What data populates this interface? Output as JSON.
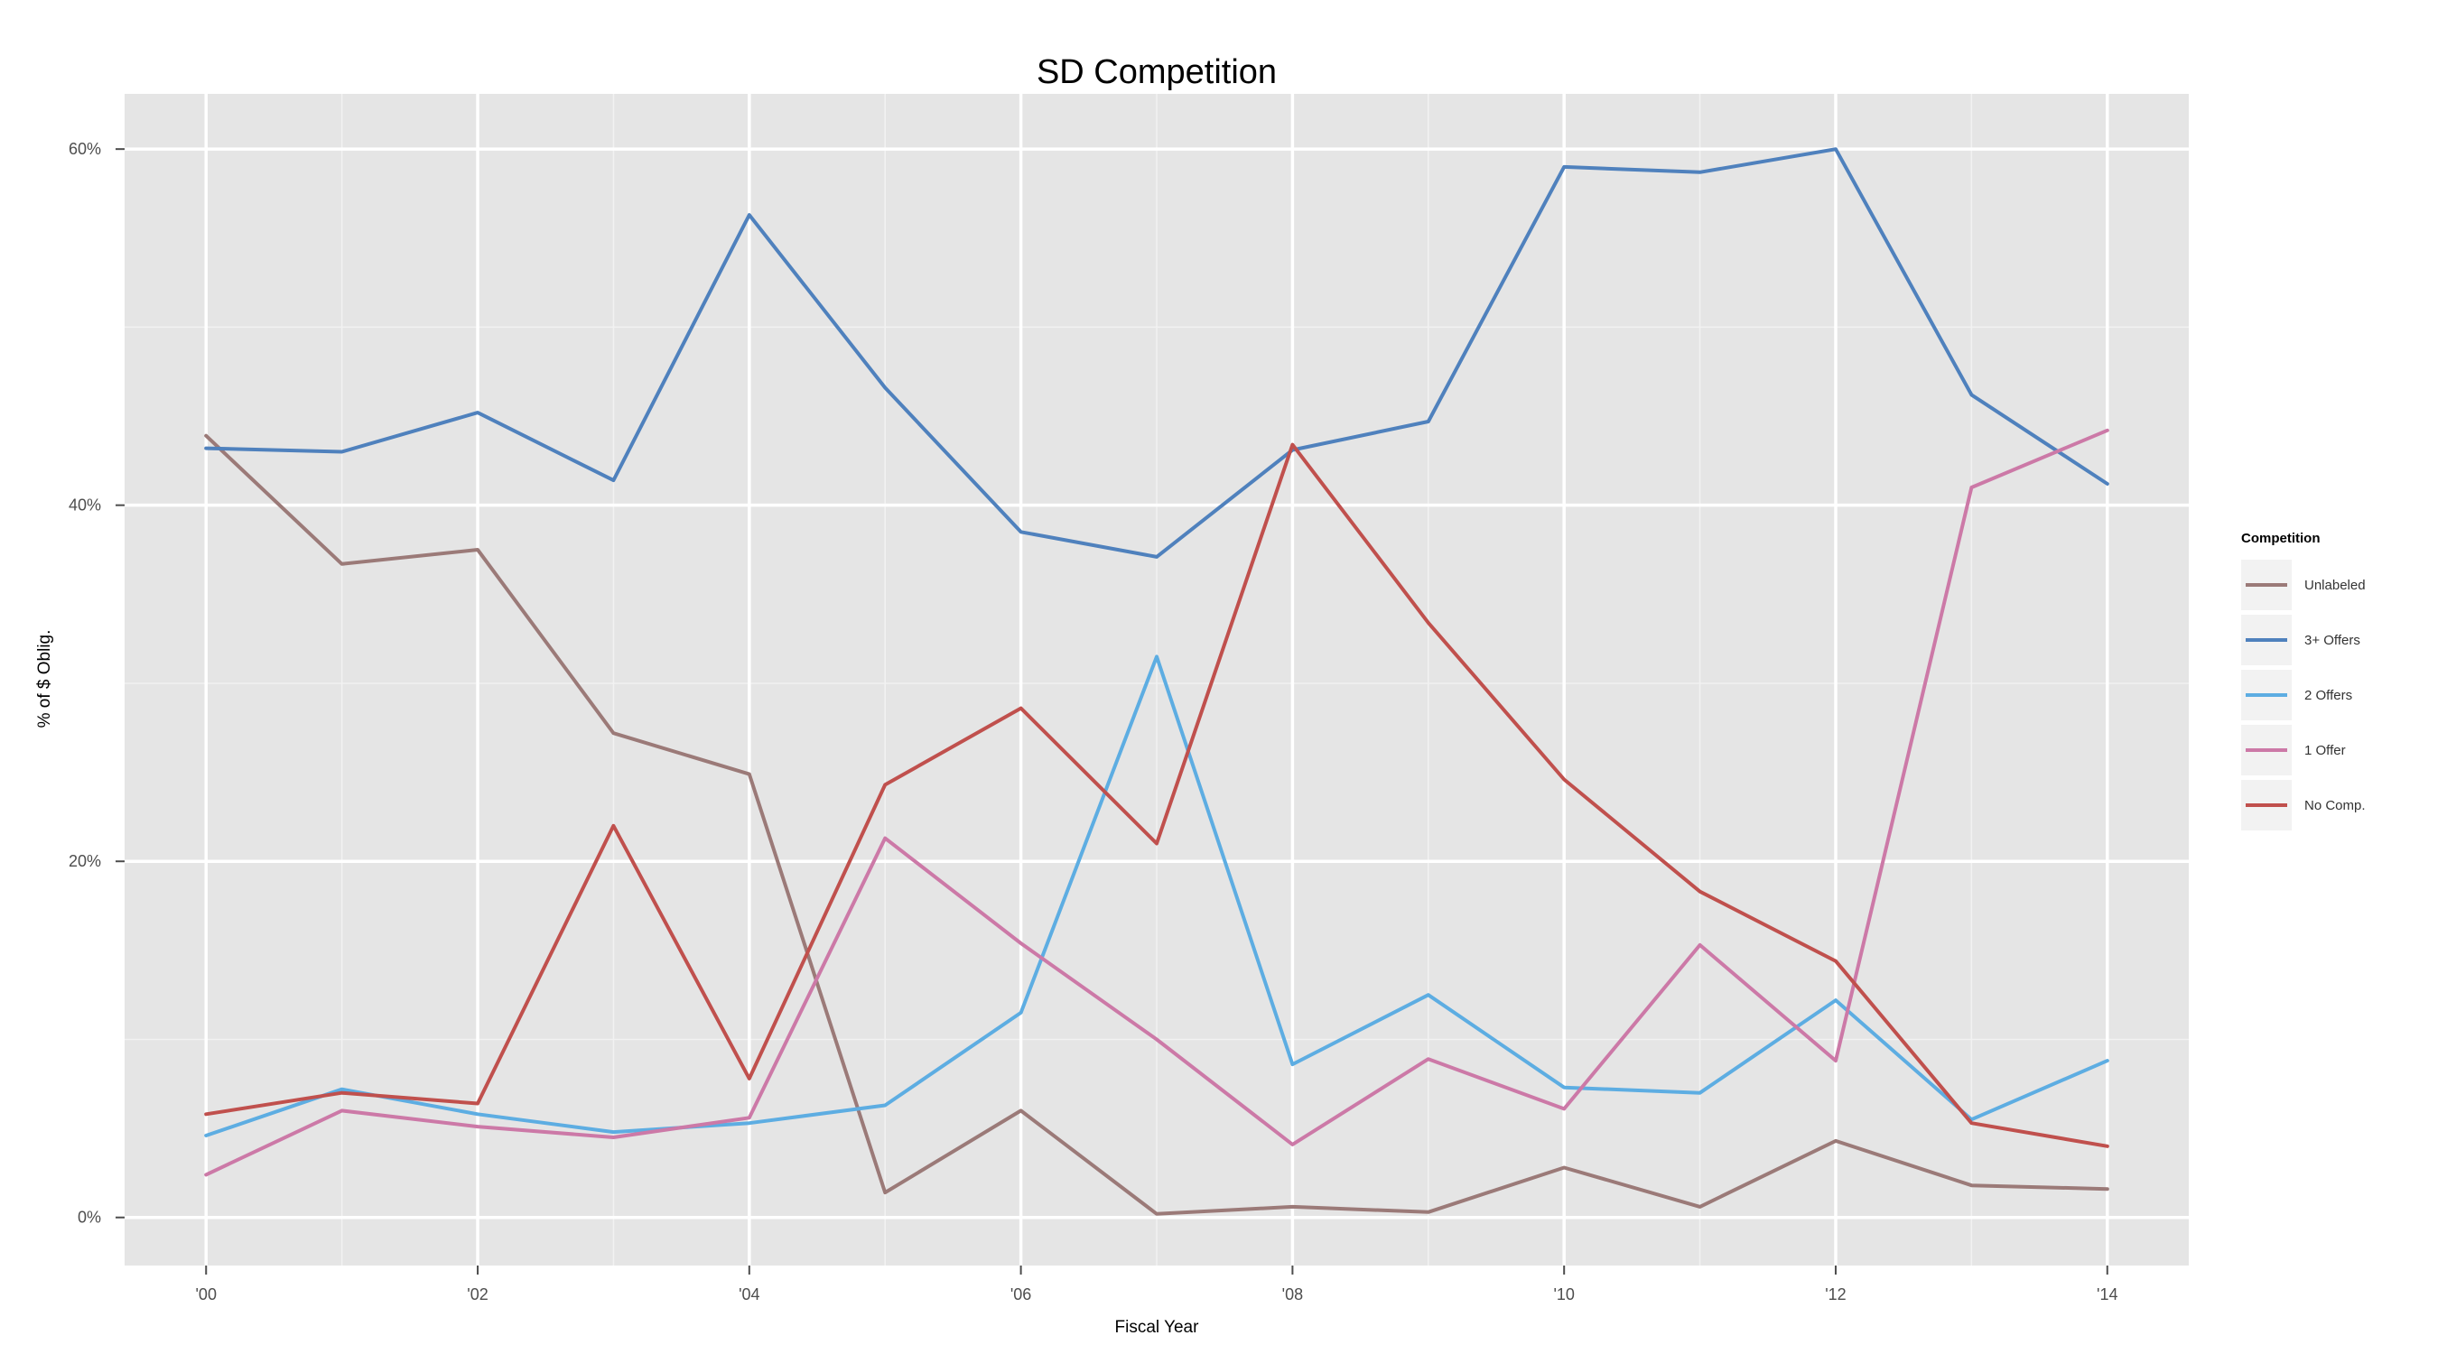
{
  "chart_data": {
    "type": "line",
    "title": "SD Competition",
    "xlabel": "Fiscal Year",
    "ylabel": "% of $ Oblig.",
    "x": [
      2000,
      2001,
      2002,
      2003,
      2004,
      2005,
      2006,
      2007,
      2008,
      2009,
      2010,
      2011,
      2012,
      2013,
      2014
    ],
    "x_ticks": [
      2000,
      2002,
      2004,
      2006,
      2008,
      2010,
      2012,
      2014
    ],
    "x_tick_labels": [
      "'00",
      "'02",
      "'04",
      "'06",
      "'08",
      "'10",
      "'12",
      "'14"
    ],
    "xlim": [
      1999.4,
      2014.6
    ],
    "y_ticks": [
      0,
      20,
      40,
      60
    ],
    "y_tick_labels": [
      "0%",
      "20%",
      "40%",
      "60%"
    ],
    "ylim": [
      -2.7,
      63.1
    ],
    "grid": true,
    "legend_title": "Competition",
    "legend_position": "right",
    "series": [
      {
        "name": "Unlabeled",
        "color": "#9b7a78",
        "values": [
          43.9,
          36.7,
          37.5,
          27.2,
          24.9,
          1.4,
          6.0,
          0.2,
          0.6,
          0.3,
          2.8,
          0.6,
          4.3,
          1.8,
          1.6
        ]
      },
      {
        "name": "3+ Offers",
        "color": "#4f81bd",
        "values": [
          43.2,
          43.0,
          45.2,
          41.4,
          56.3,
          46.6,
          38.5,
          37.1,
          43.1,
          44.7,
          59.0,
          58.7,
          60.0,
          46.2,
          41.2
        ]
      },
      {
        "name": "2 Offers",
        "color": "#5dade2",
        "values": [
          4.6,
          7.2,
          5.8,
          4.8,
          5.3,
          6.3,
          11.5,
          31.5,
          8.6,
          12.5,
          7.3,
          7.0,
          12.2,
          5.5,
          8.8
        ]
      },
      {
        "name": "1 Offer",
        "color": "#cc79a7",
        "values": [
          2.4,
          6.0,
          5.1,
          4.5,
          5.6,
          21.3,
          15.4,
          10.0,
          4.1,
          8.9,
          6.1,
          15.3,
          8.8,
          41.0,
          44.2
        ]
      },
      {
        "name": "No Comp.",
        "color": "#c0504d",
        "values": [
          5.8,
          7.0,
          6.4,
          22.0,
          7.8,
          24.3,
          28.6,
          21.0,
          43.4,
          33.4,
          24.6,
          18.3,
          14.4,
          5.3,
          4.0
        ]
      }
    ]
  }
}
